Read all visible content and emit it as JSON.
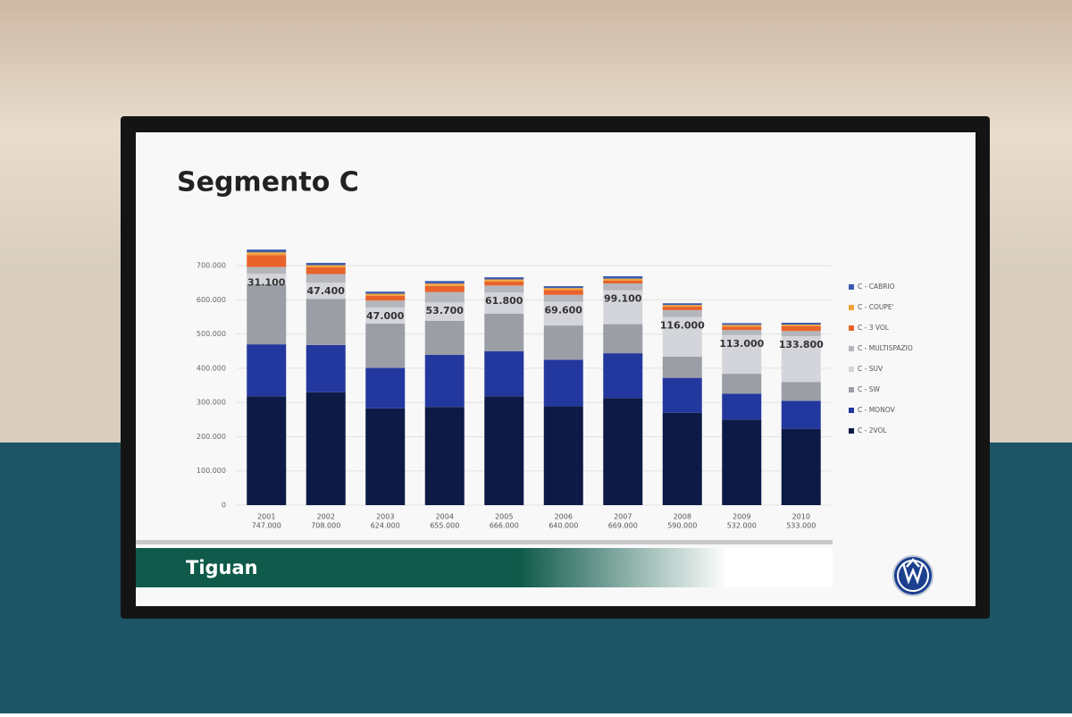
{
  "chart_data": {
    "type": "stacked_bar",
    "title": "Segmento C",
    "categories": [
      "2001",
      "2002",
      "2003",
      "2004",
      "2005",
      "2006",
      "2007",
      "2008",
      "2009",
      "2010"
    ],
    "category_totals": [
      "747.000",
      "708.000",
      "624.000",
      "655.000",
      "666.000",
      "640.000",
      "669.000",
      "590.000",
      "532.000",
      "533.000"
    ],
    "series": [
      {
        "name": "C - 2VOL",
        "color": "#0d1a45",
        "values": [
          318000,
          330000,
          283000,
          287000,
          318000,
          289000,
          313000,
          270000,
          250000,
          223000
        ]
      },
      {
        "name": "C - MONOV",
        "color": "#23389e",
        "values": [
          152000,
          138000,
          118000,
          152000,
          132000,
          136000,
          131000,
          102000,
          76000,
          82000
        ]
      },
      {
        "name": "C - SW",
        "color": "#9c9ea6",
        "values": [
          175000,
          135000,
          130000,
          100000,
          110000,
          100000,
          85000,
          62000,
          58000,
          55000
        ]
      },
      {
        "name": "C - SUV",
        "color": "#d3d5da",
        "values": [
          31100,
          47400,
          47000,
          53700,
          61800,
          69600,
          99100,
          116000,
          113000,
          133800
        ],
        "value_labels": [
          "31.100",
          "47.400",
          "47.000",
          "53.700",
          "61.800",
          "69.600",
          "99.100",
          "116.000",
          "113.000",
          "133.800"
        ]
      },
      {
        "name": "C - MULTISPAZIO",
        "color": "#b4b6bc",
        "values": [
          20000,
          25000,
          20000,
          30000,
          20000,
          20000,
          20000,
          20000,
          15000,
          15000
        ]
      },
      {
        "name": "C - 3 VOL",
        "color": "#e8632a",
        "values": [
          35000,
          20000,
          14000,
          18000,
          12000,
          14000,
          8000,
          10000,
          10000,
          14000
        ]
      },
      {
        "name": "C - COUPE'",
        "color": "#f2a33a",
        "values": [
          8000,
          6000,
          6000,
          7000,
          6000,
          6000,
          6000,
          5000,
          5000,
          5000
        ]
      },
      {
        "name": "C - CABRIO",
        "color": "#3a5bb0",
        "values": [
          7900,
          6600,
          6000,
          7300,
          6200,
          5400,
          6900,
          5000,
          5000,
          5200
        ]
      }
    ],
    "ylim": [
      0,
      750000
    ],
    "yticks": [
      0,
      {
        "value": 100000,
        "label": "100.000"
      },
      {
        "value": 200000,
        "label": "200.000"
      },
      {
        "value": 300000,
        "label": "300.000"
      },
      {
        "value": 400000,
        "label": "400.000"
      },
      {
        "value": 500000,
        "label": "500.000"
      },
      {
        "value": 600000,
        "label": "600.000"
      },
      {
        "value": 700000,
        "label": "700.000"
      }
    ],
    "grid": true
  },
  "banner": "Tiguan"
}
